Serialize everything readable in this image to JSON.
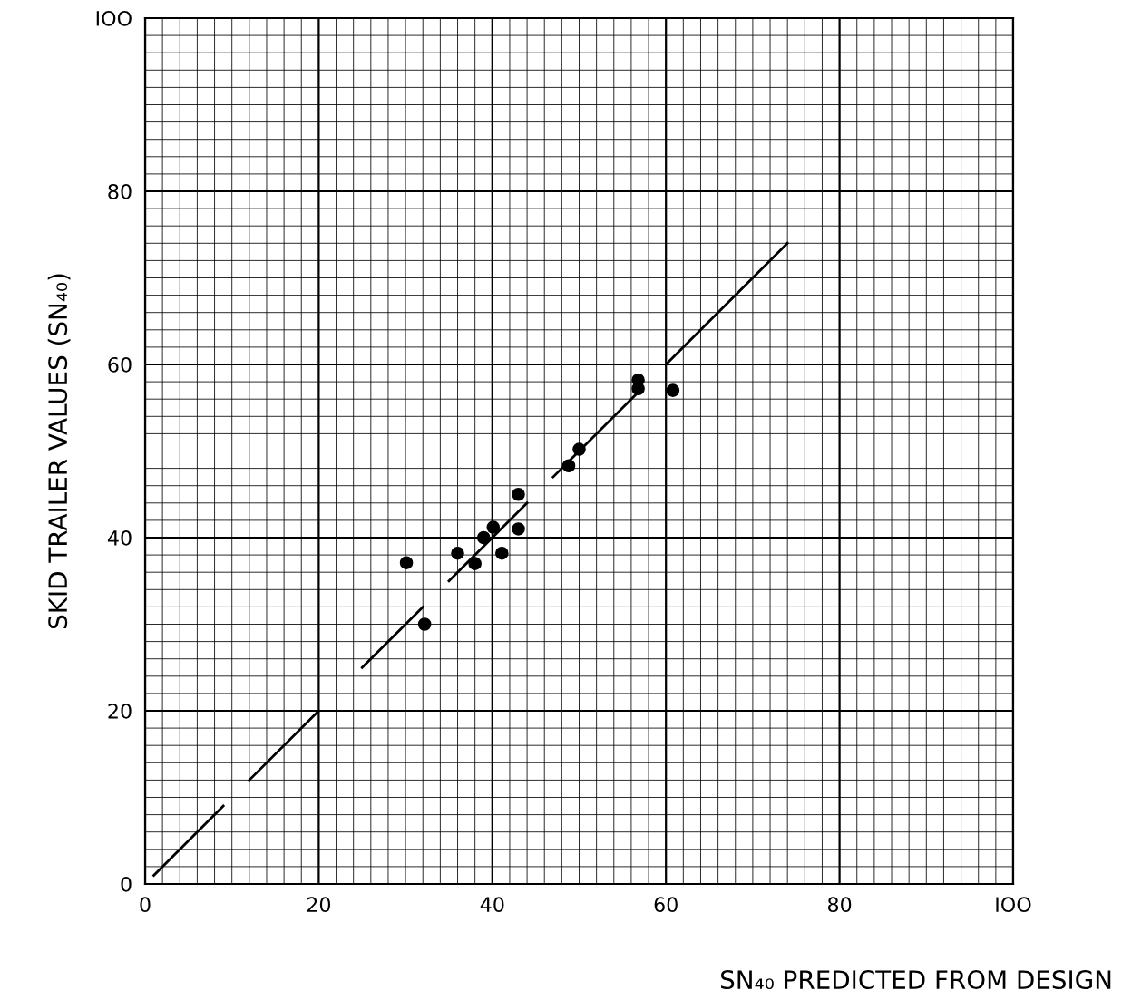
{
  "chart_data": {
    "type": "scatter",
    "xlabel": "SN₄₀ PREDICTED FROM DESIGN",
    "ylabel": "SKID TRAILER VALUES (SN₄₀)",
    "xlim": [
      0,
      100
    ],
    "ylim": [
      0,
      100
    ],
    "xticks": [
      0,
      {
        "value": 2,
        "label": null
      },
      {
        "value": 4,
        "label": null
      },
      {
        "value": 6,
        "label": null
      },
      {
        "value": 8,
        "label": null
      },
      {
        "value": 10,
        "label": null
      },
      {
        "value": 12,
        "label": null
      },
      {
        "value": 14,
        "label": null
      },
      {
        "value": 16,
        "label": null
      },
      {
        "value": 18,
        "label": null
      },
      20,
      {
        "value": 22,
        "label": null
      },
      {
        "value": 24,
        "label": null
      },
      {
        "value": 26,
        "label": null
      },
      {
        "value": 28,
        "label": null
      },
      {
        "value": 30,
        "label": null
      },
      {
        "value": 32,
        "label": null
      },
      {
        "value": 34,
        "label": null
      },
      {
        "value": 36,
        "label": null
      },
      {
        "value": 38,
        "label": null
      },
      40,
      {
        "value": 42,
        "label": null
      },
      {
        "value": 44,
        "label": null
      },
      {
        "value": 46,
        "label": null
      },
      {
        "value": 48,
        "label": null
      },
      {
        "value": 50,
        "label": null
      },
      {
        "value": 52,
        "label": null
      },
      {
        "value": 54,
        "label": null
      },
      {
        "value": 56,
        "label": null
      },
      {
        "value": 58,
        "label": null
      },
      60,
      {
        "value": 62,
        "label": null
      },
      {
        "value": 64,
        "label": null
      },
      {
        "value": 66,
        "label": null
      },
      {
        "value": 68,
        "label": null
      },
      {
        "value": 70,
        "label": null
      },
      {
        "value": 72,
        "label": null
      },
      {
        "value": 74,
        "label": null
      },
      {
        "value": 76,
        "label": null
      },
      {
        "value": 78,
        "label": null
      },
      80,
      {
        "value": 82,
        "label": null
      },
      {
        "value": 84,
        "label": null
      },
      {
        "value": 86,
        "label": null
      },
      {
        "value": 88,
        "label": null
      },
      {
        "value": 90,
        "label": null
      },
      {
        "value": 92,
        "label": null
      },
      {
        "value": 94,
        "label": null
      },
      {
        "value": 96,
        "label": null
      },
      {
        "value": 98,
        "label": null
      },
      {
        "value": 100,
        "label": "IOO"
      }
    ],
    "yticks": [
      0,
      {
        "value": 2,
        "label": null
      },
      {
        "value": 4,
        "label": null
      },
      {
        "value": 6,
        "label": null
      },
      {
        "value": 8,
        "label": null
      },
      {
        "value": 10,
        "label": null
      },
      {
        "value": 12,
        "label": null
      },
      {
        "value": 14,
        "label": null
      },
      {
        "value": 16,
        "label": null
      },
      {
        "value": 18,
        "label": null
      },
      20,
      {
        "value": 22,
        "label": null
      },
      {
        "value": 24,
        "label": null
      },
      {
        "value": 26,
        "label": null
      },
      {
        "value": 28,
        "label": null
      },
      {
        "value": 30,
        "label": null
      },
      {
        "value": 32,
        "label": null
      },
      {
        "value": 34,
        "label": null
      },
      {
        "value": 36,
        "label": null
      },
      {
        "value": 38,
        "label": null
      },
      40,
      {
        "value": 42,
        "label": null
      },
      {
        "value": 44,
        "label": null
      },
      {
        "value": 46,
        "label": null
      },
      {
        "value": 48,
        "label": null
      },
      {
        "value": 50,
        "label": null
      },
      {
        "value": 52,
        "label": null
      },
      {
        "value": 54,
        "label": null
      },
      {
        "value": 56,
        "label": null
      },
      {
        "value": 58,
        "label": null
      },
      60,
      {
        "value": 62,
        "label": null
      },
      {
        "value": 64,
        "label": null
      },
      {
        "value": 66,
        "label": null
      },
      {
        "value": 68,
        "label": null
      },
      {
        "value": 70,
        "label": null
      },
      {
        "value": 72,
        "label": null
      },
      {
        "value": 74,
        "label": null
      },
      {
        "value": 76,
        "label": null
      },
      {
        "value": 78,
        "label": null
      },
      80,
      {
        "value": 82,
        "label": null
      },
      {
        "value": 84,
        "label": null
      },
      {
        "value": 86,
        "label": null
      },
      {
        "value": 88,
        "label": null
      },
      {
        "value": 90,
        "label": null
      },
      {
        "value": 92,
        "label": null
      },
      {
        "value": 94,
        "label": null
      },
      {
        "value": 96,
        "label": null
      },
      {
        "value": 98,
        "label": null
      },
      {
        "value": 100,
        "label": "IOO"
      }
    ],
    "grid": true,
    "series": [
      {
        "color": "#000000",
        "marker": "circle",
        "x": [
          30.1,
          32.2,
          36,
          38,
          39,
          40.1,
          41.1,
          43,
          43,
          48.8,
          50,
          56.8,
          56.8,
          60.8
        ],
        "values": [
          37.1,
          30,
          38.2,
          37,
          40,
          41.2,
          38.2,
          45,
          41,
          48.3,
          50.2,
          58.2,
          57.2,
          57
        ]
      },
      {
        "type": "line",
        "color": "#000000",
        "marker": "none",
        "line_style": "solid",
        "x": [
          1,
          9,
          10.5,
          12,
          20,
          22,
          25,
          32,
          33.5,
          35,
          44,
          45.5,
          47,
          57,
          58.5,
          60,
          74
        ],
        "values": [
          1,
          9,
          null,
          12,
          20,
          null,
          25,
          32,
          null,
          35,
          44,
          null,
          47,
          57,
          null,
          60,
          74
        ]
      }
    ]
  }
}
